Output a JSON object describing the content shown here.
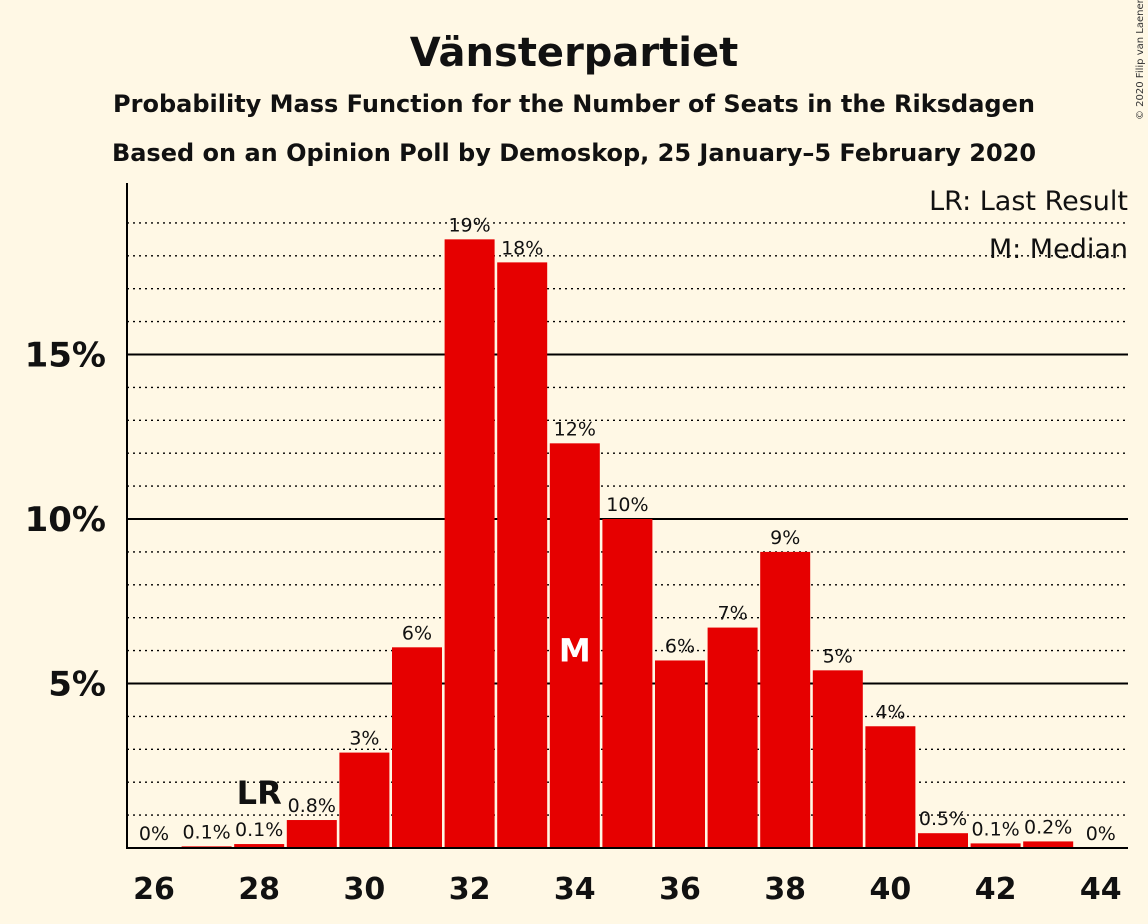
{
  "chart_data": {
    "type": "bar",
    "title": "Vänsterpartiet",
    "subtitle": "Probability Mass Function for the Number of Seats in the Riksdagen",
    "subtitle2": "Based on an Opinion Poll by Demoskop, 25 January–5 February 2020",
    "copyright": "© 2020 Filip van Laenen",
    "legend": {
      "last_result": "LR: Last Result",
      "median": "M: Median",
      "placement": "top-right"
    },
    "x": [
      26,
      27,
      28,
      29,
      30,
      31,
      32,
      33,
      34,
      35,
      36,
      37,
      38,
      39,
      40,
      41,
      42,
      43,
      44
    ],
    "values": [
      0,
      0.05,
      0.12,
      0.85,
      2.9,
      6.1,
      18.5,
      17.8,
      12.3,
      10.0,
      5.7,
      6.7,
      9.0,
      5.4,
      3.7,
      0.45,
      0.14,
      0.2,
      0
    ],
    "labels": [
      "0%",
      "0.1%",
      "0.1%",
      "0.8%",
      "3%",
      "6%",
      "19%",
      "18%",
      "12%",
      "10%",
      "6%",
      "7%",
      "9%",
      "5%",
      "4%",
      "0.5%",
      "0.1%",
      "0.2%",
      "0%"
    ],
    "x_ticks": [
      "26",
      "28",
      "30",
      "32",
      "34",
      "36",
      "38",
      "40",
      "42",
      "44"
    ],
    "y_ticks": [
      {
        "value": 5,
        "label": "5%"
      },
      {
        "value": 10,
        "label": "10%"
      },
      {
        "value": 15,
        "label": "15%"
      }
    ],
    "ylim": [
      0,
      20
    ],
    "minor_grid_step": 1,
    "last_result": {
      "seat": 28,
      "marker": "LR"
    },
    "median": {
      "seat": 34,
      "marker": "M"
    },
    "colors": {
      "bar": "#e60000",
      "background": "#fff8e5",
      "axis": "#000000"
    }
  }
}
